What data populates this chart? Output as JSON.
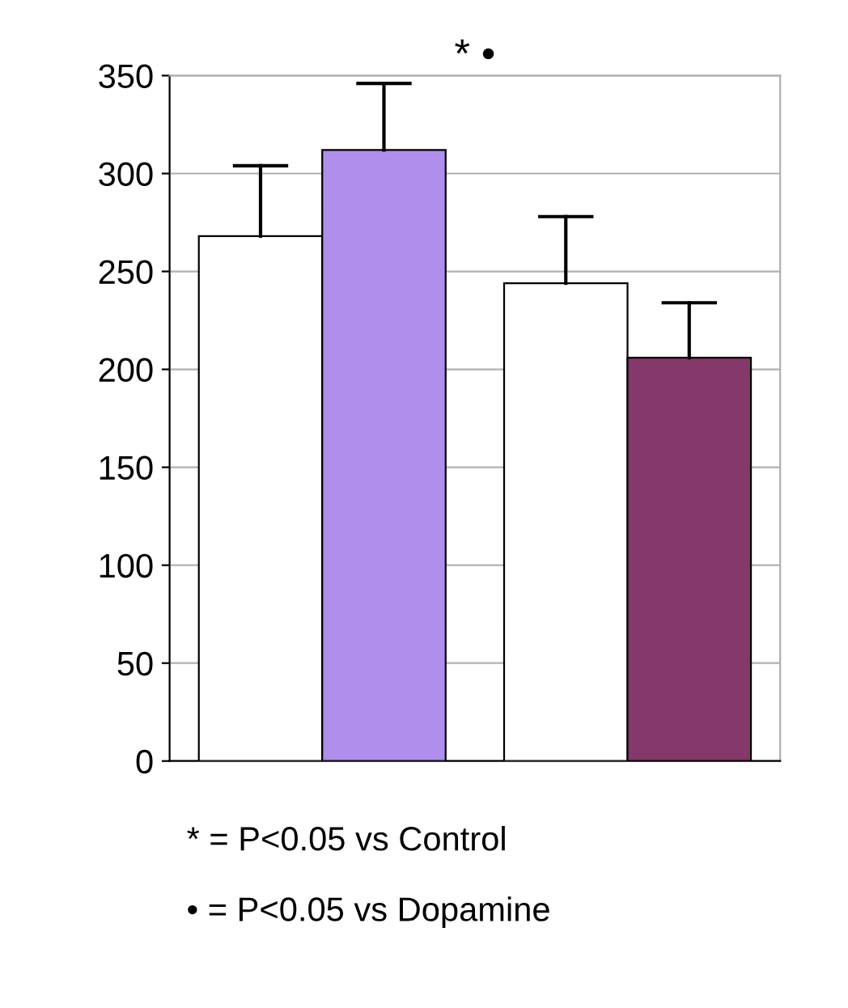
{
  "chart_data": {
    "type": "bar",
    "categories": [
      null,
      null,
      null,
      null
    ],
    "values": [
      268,
      312,
      244,
      206
    ],
    "colors": [
      "#ffffff",
      "#b08fec",
      "#ffffff",
      "#85386a"
    ],
    "errors": [
      [
        268,
        304
      ],
      [
        312,
        346
      ],
      [
        244,
        278
      ],
      [
        206,
        234
      ]
    ],
    "ylim": [
      0,
      350
    ],
    "yticks": [
      0,
      50,
      100,
      150,
      200,
      250,
      300,
      350
    ],
    "grid": "y",
    "annotations": [
      "* •",
      "* = P<0.05 vs Control",
      "• = P<0.05 vs Dopamine"
    ]
  }
}
